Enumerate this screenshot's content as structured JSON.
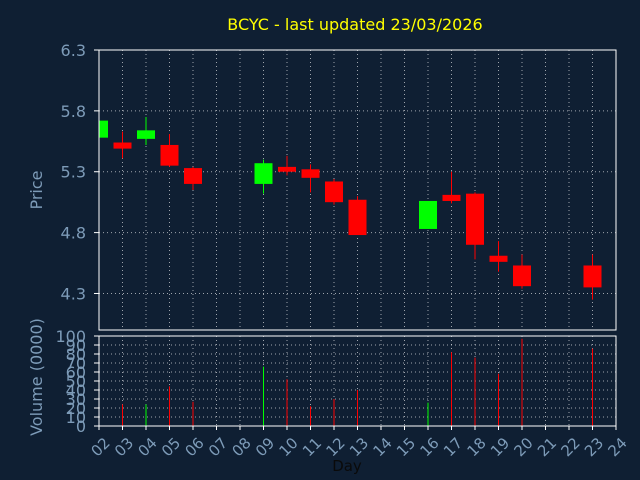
{
  "chart_data": {
    "type": "candlestick",
    "title": "BCYC - last updated 23/03/2026",
    "xlabel": "Day",
    "x_ticks": [
      "02",
      "03",
      "04",
      "05",
      "06",
      "07",
      "08",
      "09",
      "10",
      "11",
      "12",
      "13",
      "14",
      "15",
      "16",
      "17",
      "18",
      "19",
      "20",
      "21",
      "22",
      "23",
      "24"
    ],
    "price_panel": {
      "ylabel": "Price",
      "y_ticks": [
        4.3,
        4.8,
        5.3,
        5.8,
        6.3
      ],
      "ylim": [
        4.0,
        6.3
      ],
      "grid": true,
      "candles": [
        {
          "day": "02",
          "open": 5.58,
          "close": 5.72,
          "high": 5.75,
          "low": 5.55
        },
        {
          "day": "03",
          "open": 5.54,
          "close": 5.49,
          "high": 5.63,
          "low": 5.41
        },
        {
          "day": "04",
          "open": 5.57,
          "close": 5.64,
          "high": 5.75,
          "low": 5.52
        },
        {
          "day": "05",
          "open": 5.52,
          "close": 5.35,
          "high": 5.61,
          "low": 5.34
        },
        {
          "day": "06",
          "open": 5.33,
          "close": 5.2,
          "high": 5.34,
          "low": 5.15
        },
        {
          "day": "09",
          "open": 5.2,
          "close": 5.37,
          "high": 5.4,
          "low": 5.12
        },
        {
          "day": "10",
          "open": 5.34,
          "close": 5.3,
          "high": 5.43,
          "low": 5.27
        },
        {
          "day": "11",
          "open": 5.32,
          "close": 5.25,
          "high": 5.36,
          "low": 5.13
        },
        {
          "day": "12",
          "open": 5.22,
          "close": 5.05,
          "high": 5.24,
          "low": 5.03
        },
        {
          "day": "13",
          "open": 5.07,
          "close": 4.78,
          "high": 5.1,
          "low": 4.78
        },
        {
          "day": "16",
          "open": 4.83,
          "close": 5.06,
          "high": 5.06,
          "low": 4.83
        },
        {
          "day": "17",
          "open": 5.11,
          "close": 5.06,
          "high": 5.3,
          "low": 5.04
        },
        {
          "day": "18",
          "open": 5.12,
          "close": 4.7,
          "high": 5.13,
          "low": 4.58
        },
        {
          "day": "19",
          "open": 4.61,
          "close": 4.56,
          "high": 4.73,
          "low": 4.48
        },
        {
          "day": "20",
          "open": 4.53,
          "close": 4.36,
          "high": 4.62,
          "low": 4.34
        },
        {
          "day": "23",
          "open": 4.53,
          "close": 4.35,
          "high": 4.62,
          "low": 4.25
        }
      ]
    },
    "volume_panel": {
      "ylabel": "Volume (0000)",
      "y_ticks": [
        0,
        10,
        20,
        30,
        40,
        50,
        60,
        70,
        80,
        90,
        100
      ],
      "ylim": [
        0,
        100
      ],
      "grid": true,
      "bars": [
        {
          "day": "03",
          "value": 24,
          "direction": "down"
        },
        {
          "day": "04",
          "value": 24,
          "direction": "up"
        },
        {
          "day": "05",
          "value": 44,
          "direction": "down"
        },
        {
          "day": "06",
          "value": 27,
          "direction": "down"
        },
        {
          "day": "09",
          "value": 66,
          "direction": "up"
        },
        {
          "day": "10",
          "value": 52,
          "direction": "down"
        },
        {
          "day": "11",
          "value": 22,
          "direction": "down"
        },
        {
          "day": "12",
          "value": 30,
          "direction": "down"
        },
        {
          "day": "13",
          "value": 40,
          "direction": "down"
        },
        {
          "day": "16",
          "value": 26,
          "direction": "up"
        },
        {
          "day": "17",
          "value": 82,
          "direction": "down"
        },
        {
          "day": "18",
          "value": 76,
          "direction": "down"
        },
        {
          "day": "19",
          "value": 58,
          "direction": "down"
        },
        {
          "day": "20",
          "value": 97,
          "direction": "down"
        },
        {
          "day": "23",
          "value": 86,
          "direction": "down"
        }
      ]
    },
    "colors": {
      "background": "#0f1f33",
      "plot_border": "#ffffff",
      "grid": "#ffffff",
      "title": "#ffff00",
      "axis_text": "#7d9bb8",
      "up": "#00ff00",
      "down": "#ff0000"
    }
  }
}
